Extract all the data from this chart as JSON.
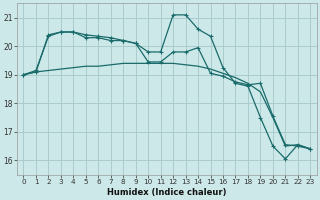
{
  "xlabel": "Humidex (Indice chaleur)",
  "background_color": "#cde8e8",
  "grid_color": "#aacccc",
  "line_color": "#1a6b6b",
  "xlim": [
    -0.5,
    23.5
  ],
  "ylim": [
    15.5,
    21.5
  ],
  "yticks": [
    16,
    17,
    18,
    19,
    20,
    21
  ],
  "xticks": [
    0,
    1,
    2,
    3,
    4,
    5,
    6,
    7,
    8,
    9,
    10,
    11,
    12,
    13,
    14,
    15,
    16,
    17,
    18,
    19,
    20,
    21,
    22,
    23
  ],
  "line1_x": [
    0,
    1,
    2,
    3,
    4,
    5,
    6,
    7,
    8,
    9,
    10,
    11,
    12,
    13,
    14,
    15,
    16,
    17,
    18,
    19,
    20,
    21,
    22,
    23
  ],
  "line1_y": [
    19.0,
    19.1,
    20.4,
    20.5,
    20.5,
    20.3,
    20.3,
    20.2,
    20.2,
    20.1,
    19.45,
    19.45,
    19.8,
    19.8,
    19.95,
    19.05,
    18.95,
    18.75,
    18.65,
    18.7,
    17.55,
    16.55,
    16.5,
    16.4
  ],
  "line2_x": [
    0,
    1,
    2,
    3,
    4,
    5,
    6,
    7,
    8,
    9,
    10,
    11,
    12,
    13,
    14,
    15,
    16,
    17,
    18,
    19,
    20,
    21,
    22,
    23
  ],
  "line2_y": [
    19.0,
    19.15,
    20.35,
    20.5,
    20.5,
    20.4,
    20.35,
    20.3,
    20.2,
    20.1,
    19.8,
    19.8,
    21.1,
    21.1,
    20.6,
    20.35,
    19.25,
    18.7,
    18.6,
    17.5,
    16.5,
    16.05,
    16.55,
    16.4
  ],
  "line3_x": [
    0,
    1,
    2,
    3,
    4,
    5,
    6,
    7,
    8,
    9,
    10,
    11,
    12,
    13,
    14,
    15,
    16,
    17,
    18,
    19,
    20,
    21,
    22,
    23
  ],
  "line3_y": [
    19.0,
    19.1,
    19.15,
    19.2,
    19.25,
    19.3,
    19.3,
    19.35,
    19.4,
    19.4,
    19.4,
    19.4,
    19.4,
    19.35,
    19.3,
    19.2,
    19.05,
    18.9,
    18.7,
    18.4,
    17.5,
    16.5,
    16.55,
    16.4
  ]
}
